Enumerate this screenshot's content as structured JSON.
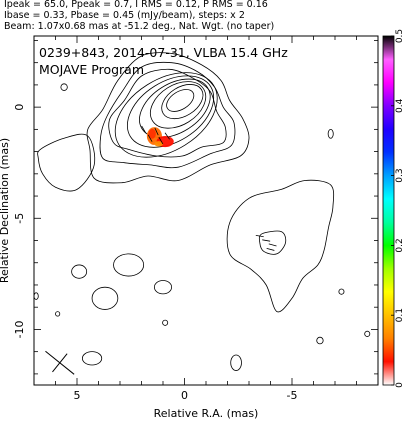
{
  "header": {
    "line1": "Ipeak = 65.0, Ppeak = 0.7, I RMS = 0.12, P RMS = 0.16",
    "line2": "Ibase = 0.33, Pbase = 0.45 (mJy/beam), steps: x 2",
    "line3": "Beam: 1.07x0.68 mas at -51.2 deg., Nat. Wgt. (no taper)"
  },
  "panel": {
    "title": "0239+843, 2014-07-31, VLBA 15.4 GHz",
    "subtitle": "MOJAVE Program"
  },
  "chart_data": {
    "type": "contour",
    "xlabel": "Relative R.A. (mas)",
    "ylabel": "Relative Declination (mas)",
    "xlim": [
      7,
      -9
    ],
    "ylim": [
      -12.5,
      3.2
    ],
    "x_ticks": [
      5,
      0,
      -5
    ],
    "x_tick_labels": [
      "5",
      "0",
      "-5"
    ],
    "y_ticks": [
      0,
      -5,
      -10
    ],
    "y_tick_labels": [
      "0",
      "-5",
      "-10"
    ],
    "colorbar": {
      "range": [
        0,
        0.5
      ],
      "ticks": [
        0,
        0.1,
        0.2,
        0.3,
        0.4,
        0.5
      ],
      "tick_labels": [
        "0",
        "0.1",
        "0.2",
        "0.3",
        "0.4",
        "0.5"
      ],
      "colors": [
        "#ffffff",
        "#ff1000",
        "#ff8000",
        "#ffc000",
        "#ffff00",
        "#a0ff00",
        "#00ff00",
        "#00ffa0",
        "#00ffff",
        "#00a0ff",
        "#0030ff",
        "#2000ff",
        "#8000ff",
        "#ff00ff",
        "#ff60ff",
        "#000000"
      ]
    },
    "core_contours": [
      {
        "cx": 0.2,
        "cy": 0.3,
        "rx": 0.7,
        "ry": 0.4
      },
      {
        "cx": 0.1,
        "cy": 0.25,
        "rx": 1.05,
        "ry": 0.65
      },
      {
        "cx": 0.3,
        "cy": 0.1,
        "rx": 1.4,
        "ry": 0.9
      },
      {
        "cx": 0.45,
        "cy": -0.05,
        "rx": 1.8,
        "ry": 1.1
      },
      {
        "cx": 0.65,
        "cy": -0.2,
        "rx": 2.2,
        "ry": 1.35
      },
      {
        "cx": 0.85,
        "cy": -0.35,
        "rx": 2.6,
        "ry": 1.6
      }
    ],
    "outer_contours": [
      [
        [
          2.6,
          -1.9
        ],
        [
          3.3,
          -1.6
        ],
        [
          3.5,
          -0.6
        ],
        [
          2.8,
          0.3
        ],
        [
          2.0,
          1.4
        ],
        [
          0.7,
          1.7
        ],
        [
          -0.4,
          1.3
        ],
        [
          -1.2,
          0.7
        ],
        [
          -1.5,
          -0.2
        ],
        [
          -1.9,
          -0.9
        ],
        [
          -1.8,
          -1.6
        ],
        [
          -0.8,
          -1.8
        ],
        [
          0.1,
          -2.2
        ],
        [
          1.3,
          -2.2
        ]
      ],
      [
        [
          2.8,
          -2.5
        ],
        [
          3.8,
          -2.3
        ],
        [
          3.9,
          -1.3
        ],
        [
          3.6,
          -0.4
        ],
        [
          2.9,
          0.7
        ],
        [
          2.0,
          1.8
        ],
        [
          0.6,
          2.0
        ],
        [
          -0.6,
          1.6
        ],
        [
          -1.4,
          0.9
        ],
        [
          -1.8,
          0.0
        ],
        [
          -2.3,
          -0.7
        ],
        [
          -2.2,
          -1.7
        ],
        [
          -1.2,
          -2.1
        ],
        [
          0.3,
          -2.7
        ],
        [
          1.6,
          -2.6
        ]
      ],
      [
        [
          2.9,
          -3.4
        ],
        [
          4.2,
          -3.2
        ],
        [
          4.4,
          -1.9
        ],
        [
          4.5,
          -1.0
        ],
        [
          3.8,
          -0.1
        ],
        [
          3.1,
          1.2
        ],
        [
          2.0,
          2.3
        ],
        [
          0.5,
          2.4
        ],
        [
          -0.8,
          1.9
        ],
        [
          -1.7,
          1.2
        ],
        [
          -2.1,
          0.3
        ],
        [
          -2.7,
          -0.5
        ],
        [
          -3.0,
          -1.4
        ],
        [
          -2.6,
          -2.2
        ],
        [
          -1.2,
          -2.6
        ],
        [
          0.3,
          -3.3
        ],
        [
          1.7,
          -3.1
        ]
      ],
      [
        [
          6.7,
          -1.9
        ],
        [
          5.6,
          -1.4
        ],
        [
          4.5,
          -1.3
        ],
        [
          4.2,
          -2.6
        ],
        [
          5.0,
          -3.7
        ],
        [
          6.0,
          -3.6
        ],
        [
          6.6,
          -3.0
        ],
        [
          6.8,
          -2.3
        ]
      ]
    ],
    "jet_contours": [
      [
        [
          -2.1,
          -6.6
        ],
        [
          -2.1,
          -5.2
        ],
        [
          -3.0,
          -4.1
        ],
        [
          -4.5,
          -3.7
        ],
        [
          -5.6,
          -3.3
        ],
        [
          -6.8,
          -3.5
        ],
        [
          -6.9,
          -4.5
        ],
        [
          -6.7,
          -5.4
        ],
        [
          -6.5,
          -6.4
        ],
        [
          -6.2,
          -7.1
        ],
        [
          -5.5,
          -7.7
        ],
        [
          -5.0,
          -8.6
        ],
        [
          -4.3,
          -9.2
        ],
        [
          -3.8,
          -8.0
        ],
        [
          -3.1,
          -7.3
        ]
      ],
      [
        [
          -3.6,
          -5.7
        ],
        [
          -4.5,
          -5.6
        ],
        [
          -4.7,
          -6.1
        ],
        [
          -4.3,
          -6.6
        ],
        [
          -3.7,
          -6.5
        ],
        [
          -3.5,
          -6.1
        ]
      ]
    ],
    "small_contours": [
      {
        "cx": 5.6,
        "cy": 0.9,
        "rx": 0.15,
        "ry": 0.15
      },
      {
        "cx": -6.8,
        "cy": -1.2,
        "rx": 0.12,
        "ry": 0.2
      },
      {
        "cx": 2.6,
        "cy": -7.1,
        "rx": 0.7,
        "ry": 0.5
      },
      {
        "cx": 3.7,
        "cy": -8.6,
        "rx": 0.6,
        "ry": 0.5
      },
      {
        "cx": 4.9,
        "cy": -7.4,
        "rx": 0.35,
        "ry": 0.3
      },
      {
        "cx": 1.0,
        "cy": -8.1,
        "rx": 0.4,
        "ry": 0.3
      },
      {
        "cx": 4.3,
        "cy": -11.3,
        "rx": 0.45,
        "ry": 0.3
      },
      {
        "cx": -2.4,
        "cy": -11.5,
        "rx": 0.25,
        "ry": 0.35
      },
      {
        "cx": -6.3,
        "cy": -10.5,
        "rx": 0.15,
        "ry": 0.15
      },
      {
        "cx": 6.9,
        "cy": -8.5,
        "rx": 0.1,
        "ry": 0.15
      },
      {
        "cx": -8.5,
        "cy": -10.2,
        "rx": 0.12,
        "ry": 0.12
      },
      {
        "cx": -7.3,
        "cy": -8.3,
        "rx": 0.12,
        "ry": 0.12
      },
      {
        "cx": 0.9,
        "cy": -9.7,
        "rx": 0.12,
        "ry": 0.12
      },
      {
        "cx": 5.9,
        "cy": -9.3,
        "rx": 0.1,
        "ry": 0.1
      }
    ],
    "polarization_patches": [
      {
        "x": 1.4,
        "y": -1.3,
        "rx": 0.35,
        "ry": 0.4,
        "color": "#ff6a00"
      },
      {
        "x": 1.5,
        "y": -1.2,
        "rx": 0.17,
        "ry": 0.22,
        "color": "#ff3000"
      },
      {
        "x": 0.9,
        "y": -1.55,
        "rx": 0.4,
        "ry": 0.25,
        "color": "#ff1000"
      },
      {
        "x": 1.2,
        "y": -1.65,
        "rx": 0.2,
        "ry": 0.12,
        "color": "#ff8c00"
      }
    ],
    "vectors": [
      {
        "x": 1.9,
        "y": -1.0,
        "angle": 120
      },
      {
        "x": 1.6,
        "y": -1.4,
        "angle": 120
      },
      {
        "x": 1.3,
        "y": -1.1,
        "angle": 115
      },
      {
        "x": 1.1,
        "y": -1.5,
        "angle": 120
      },
      {
        "x": 0.8,
        "y": -1.3,
        "angle": 125
      },
      {
        "x": -3.5,
        "y": -5.8,
        "angle": 170
      },
      {
        "x": -3.8,
        "y": -6.0,
        "angle": 170
      },
      {
        "x": -4.1,
        "y": -6.2,
        "angle": 165
      },
      {
        "x": -4.0,
        "y": -6.4,
        "angle": 165
      }
    ],
    "beam": {
      "x": 5.8,
      "y": -11.5,
      "major": 1.07,
      "minor": 0.68,
      "pa": -51.2
    }
  }
}
